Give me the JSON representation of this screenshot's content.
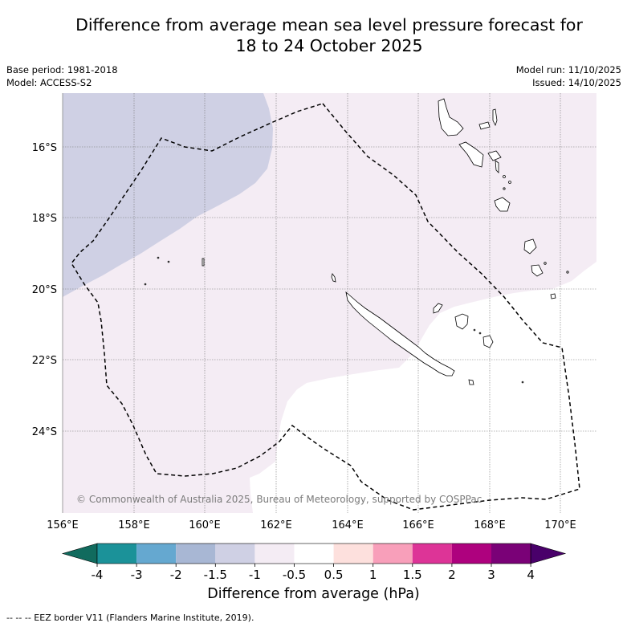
{
  "title_line1": "Difference from average mean sea level pressure forecast for",
  "title_line2": "18 to 24 October 2025",
  "base_period": "Base period: 1981-2018",
  "model": "Model: ACCESS-S2",
  "model_run": "Model run: 11/10/2025",
  "issued": "Issued: 14/10/2025",
  "lat_labels": [
    "16°S",
    "18°S",
    "20°S",
    "22°S",
    "24°S"
  ],
  "lon_labels": [
    "156°E",
    "158°E",
    "160°E",
    "162°E",
    "164°E",
    "166°E",
    "168°E",
    "170°E"
  ],
  "copyright": "© Commonwealth of Australia 2025, Bureau of Meteorology, supported by COSPPac",
  "colorbar": {
    "ticks": [
      "-4",
      "-3",
      "-2",
      "-1.5",
      "-1",
      "-0.5",
      "0.5",
      "1",
      "1.5",
      "2",
      "3",
      "4"
    ],
    "colors": [
      "#116b5e",
      "#1b9299",
      "#65a8d0",
      "#a8b7d4",
      "#cfd0e4",
      "#f4ecf4",
      "#ffffff",
      "#fde0dd",
      "#f89fba",
      "#dd3497",
      "#ae017e",
      "#7a0177",
      "#49006a"
    ],
    "title": "Difference from average (hPa)"
  },
  "map_regions": {
    "minus_1_to_minus_0_5_color": "#cfd0e4",
    "minus_0_5_to_0_color": "#f4ecf4",
    "neutral_color": "#ffffff"
  },
  "footnote": "-- -- -- EEZ border V11 (Flanders Marine Institute, 2019)."
}
